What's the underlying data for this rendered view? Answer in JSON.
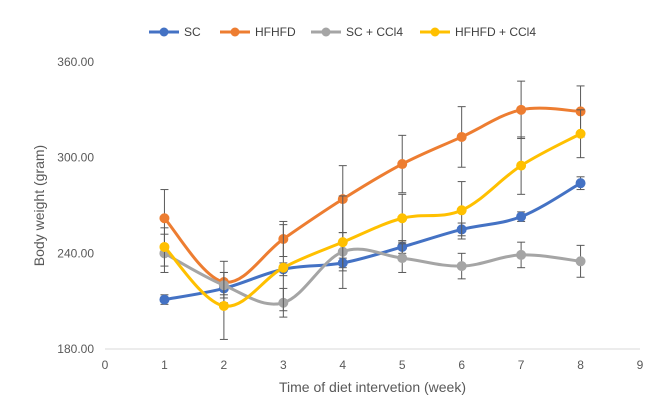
{
  "chart_data": {
    "type": "line",
    "title": "",
    "xlabel": "Time of diet intervetion (week)",
    "ylabel": "Body weight (gram)",
    "xlim": [
      0,
      9
    ],
    "ylim": [
      180,
      360
    ],
    "x_ticks": [
      "0",
      "1",
      "2",
      "3",
      "4",
      "5",
      "6",
      "7",
      "8",
      "9"
    ],
    "y_ticks": [
      "180.00",
      "240.00",
      "300.00",
      "360.00"
    ],
    "grid": false,
    "legend_position": "top",
    "error_bars": true,
    "x": [
      1,
      2,
      3,
      4,
      5,
      6,
      7,
      8
    ],
    "series": [
      {
        "name": "SC",
        "color": "#4472C4",
        "values": [
          211,
          218,
          230,
          234,
          244,
          255,
          263,
          284
        ],
        "errors": [
          3,
          4,
          4,
          3,
          4,
          4,
          3,
          4
        ]
      },
      {
        "name": "HFHFD",
        "color": "#ED7D31",
        "values": [
          262,
          222,
          249,
          274,
          296,
          313,
          330,
          329
        ],
        "errors": [
          18,
          13,
          11,
          21,
          18,
          19,
          18,
          16
        ]
      },
      {
        "name": "SC + CCl4",
        "color": "#A5A5A5",
        "values": [
          240,
          220,
          209,
          241,
          237,
          232,
          239,
          235
        ],
        "errors": [
          12,
          8,
          9,
          12,
          9,
          8,
          8,
          10
        ]
      },
      {
        "name": "HFHFD + CCl4",
        "color": "#FFC000",
        "values": [
          244,
          207,
          231,
          247,
          262,
          267,
          295,
          315
        ],
        "errors": [
          12,
          21,
          27,
          29,
          15,
          18,
          18,
          15
        ]
      }
    ]
  }
}
